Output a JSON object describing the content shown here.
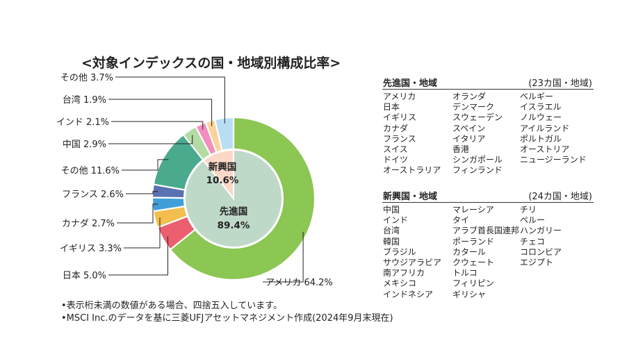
{
  "title": "<対象インデックスの国・地域別構成比率>",
  "chart_data": {
    "type": "pie",
    "slices": [
      {
        "label": "アメリカ",
        "value": 64.2,
        "display": "アメリカ 64.2%",
        "group": "developed",
        "color": "#8cc653"
      },
      {
        "label": "日本",
        "value": 5.0,
        "display": "日本 5.0%",
        "group": "developed",
        "color": "#eb5f6e"
      },
      {
        "label": "イギリス",
        "value": 3.3,
        "display": "イギリス 3.3%",
        "group": "developed",
        "color": "#f2bf4e"
      },
      {
        "label": "カナダ",
        "value": 2.7,
        "display": "カナダ 2.7%",
        "group": "developed",
        "color": "#3fa0d9"
      },
      {
        "label": "フランス",
        "value": 2.6,
        "display": "フランス 2.6%",
        "group": "developed",
        "color": "#5a72b2"
      },
      {
        "label": "その他",
        "value": 11.6,
        "display": "その他 11.6%",
        "group": "developed",
        "color": "#4aaa8e"
      },
      {
        "label": "中国",
        "value": 2.9,
        "display": "中国 2.9%",
        "group": "emerging",
        "color": "#b3dba3"
      },
      {
        "label": "インド",
        "value": 2.1,
        "display": "インド 2.1%",
        "group": "emerging",
        "color": "#f28fbe"
      },
      {
        "label": "台湾",
        "value": 1.9,
        "display": "台湾 1.9%",
        "group": "emerging",
        "color": "#fbd39a"
      },
      {
        "label": "その他",
        "value": 3.7,
        "display": "その他 3.7%",
        "group": "emerging",
        "color": "#b9ddf3"
      }
    ],
    "inner": [
      {
        "label": "先進国",
        "value": 89.4,
        "display": "89.4%",
        "color": "#bfd9c9"
      },
      {
        "label": "新興国",
        "value": 10.6,
        "display": "10.6%",
        "color": "#fbd8c7"
      }
    ]
  },
  "developed": {
    "title": "先進国・地域",
    "count": "(23カ国・地域)",
    "columns": [
      [
        "アメリカ",
        "日本",
        "イギリス",
        "カナダ",
        "フランス",
        "スイス",
        "ドイツ",
        "オーストラリア"
      ],
      [
        "オランダ",
        "デンマーク",
        "スウェーデン",
        "スペイン",
        "イタリア",
        "香港",
        "シンガポール",
        "フィンランド"
      ],
      [
        "ベルギー",
        "イスラエル",
        "ノルウェー",
        "アイルランド",
        "ポルトガル",
        "オーストリア",
        "ニュージーランド"
      ]
    ]
  },
  "emerging": {
    "title": "新興国・地域",
    "count": "(24カ国・地域)",
    "columns": [
      [
        "中国",
        "インド",
        "台湾",
        "韓国",
        "ブラジル",
        "サウジアラビア",
        "南アフリカ",
        "メキシコ",
        "インドネシア"
      ],
      [
        "マレーシア",
        "タイ",
        "アラブ首長国連邦",
        "ポーランド",
        "カタール",
        "クウェート",
        "トルコ",
        "フィリピン",
        "ギリシャ"
      ],
      [
        "チリ",
        "ペルー",
        "ハンガリー",
        "チェコ",
        "コロンビア",
        "エジプト"
      ]
    ]
  },
  "notes": [
    "•表示桁未満の数値がある場合、四捨五入しています。",
    "•MSCI Inc.のデータを基に三菱UFJアセットマネジメント作成(2024年9月末現在)"
  ]
}
